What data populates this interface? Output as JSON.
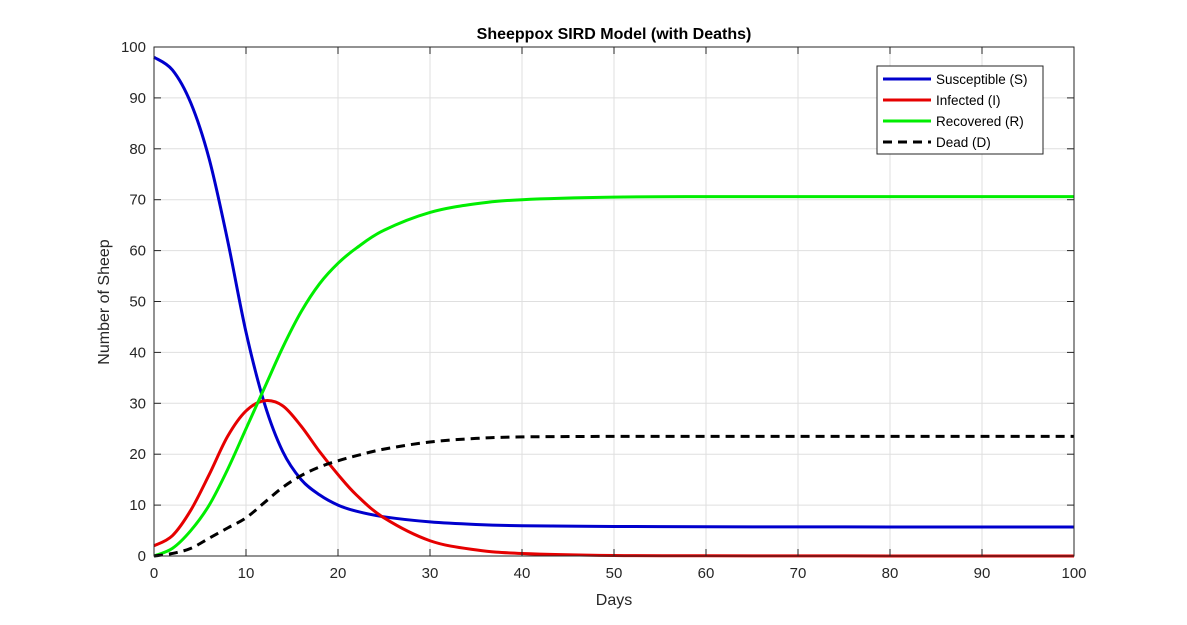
{
  "chart_data": {
    "type": "line",
    "title": "Sheeppox SIRD Model (with Deaths)",
    "xlabel": "Days",
    "ylabel": "Number of Sheep",
    "xlim": [
      0,
      100
    ],
    "ylim": [
      0,
      100
    ],
    "xticks": [
      0,
      10,
      20,
      30,
      40,
      50,
      60,
      70,
      80,
      90,
      100
    ],
    "yticks": [
      0,
      10,
      20,
      30,
      40,
      50,
      60,
      70,
      80,
      90,
      100
    ],
    "grid": true,
    "legend_position": "top-right",
    "x": [
      0,
      2,
      4,
      6,
      8,
      10,
      12,
      14,
      16,
      18,
      20,
      22,
      25,
      30,
      35,
      40,
      50,
      60,
      70,
      80,
      90,
      100
    ],
    "series": [
      {
        "name": "Susceptible (S)",
        "color": "#0000cd",
        "style": "solid",
        "values": [
          98,
          95.5,
          89,
          78,
          62,
          44,
          30,
          20.5,
          15,
          12,
          10,
          8.8,
          7.7,
          6.7,
          6.2,
          5.95,
          5.8,
          5.75,
          5.72,
          5.71,
          5.7,
          5.7
        ]
      },
      {
        "name": "Infected (I)",
        "color": "#e60000",
        "style": "solid",
        "values": [
          2,
          4,
          9,
          16,
          23.5,
          28.5,
          30.5,
          29.5,
          25.5,
          20.5,
          16,
          12,
          7.5,
          3,
          1.2,
          0.5,
          0.1,
          0.05,
          0.02,
          0.01,
          0,
          0
        ]
      },
      {
        "name": "Recovered (R)",
        "color": "#00ee00",
        "style": "solid",
        "values": [
          0,
          1.5,
          5,
          10,
          17,
          25,
          33,
          41,
          48,
          53.5,
          57.5,
          60.5,
          64,
          67.5,
          69.2,
          70,
          70.5,
          70.6,
          70.6,
          70.6,
          70.6,
          70.6
        ]
      },
      {
        "name": "Dead (D)",
        "color": "#000000",
        "style": "dashed",
        "values": [
          0,
          0.5,
          1.5,
          3.5,
          5.5,
          7.5,
          10.5,
          13.5,
          15.8,
          17.5,
          18.7,
          19.7,
          21,
          22.4,
          23.1,
          23.4,
          23.5,
          23.5,
          23.5,
          23.5,
          23.5,
          23.5
        ]
      }
    ]
  }
}
